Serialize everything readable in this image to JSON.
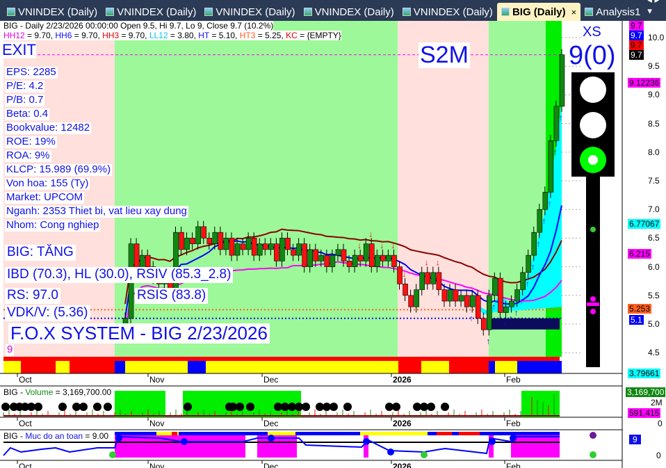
{
  "tabs": [
    {
      "label": "VNINDEX (Daily)"
    },
    {
      "label": "VNINDEX (Daily)"
    },
    {
      "label": "VNINDEX (Daily)"
    },
    {
      "label": "VNINDEX (Daily)"
    },
    {
      "label": "VNINDEX (Daily)"
    },
    {
      "label": "BIG (Daily)",
      "active": true,
      "close": "×"
    },
    {
      "label": "Analysis1"
    }
  ],
  "tab_nav": "◂ ▸ ▾",
  "header": {
    "line1": "BIG - Daily 2/23/2026 00:00:00 Open 9.5, Hi 9.7, Lo 9, Close 9.7 (10.2%)",
    "line2": [
      {
        "k": "HH12",
        "v": " = 9.70, ",
        "c": "#e000e0"
      },
      {
        "k": "HH6",
        "v": " = 9.70, ",
        "c": "#1010e8"
      },
      {
        "k": "HH3",
        "v": " = 9.70, ",
        "c": "#e00000"
      },
      {
        "k": "LL12",
        "v": " = 3.80, ",
        "c": "#00c8e8"
      },
      {
        "k": "HT",
        "v": "  = 5.10, ",
        "c": "#1010e8"
      },
      {
        "k": "HT3",
        "v": "  = 5.25, ",
        "c": "#ff6020"
      },
      {
        "k": "KC",
        "v": " = {EMPTY}",
        "c": "#e00000"
      }
    ]
  },
  "signals": {
    "exit": "EXIT",
    "s2m": "S2M",
    "xs": "XS",
    "xs_value": "9(0)"
  },
  "fundamentals": [
    "EPS: 2285",
    "P/E: 4.2",
    "P/B: 0.7",
    "Beta: 0.4",
    "Bookvalue: 12482",
    "ROE: 19%",
    "ROA: 9%",
    "KLCP: 15.989 (69.9%)",
    "Von hoa: 155 (Ty)",
    "Market: UPCOM",
    "Nganh: 2353 Thiet bi, vat lieu xay dung",
    "Nhom: Cong nghiep"
  ],
  "status": {
    "trend": "BIG: TĂNG",
    "ibd": "IBD (70.3), HL (30.0), RSIV (85.3_2.8)",
    "rsis": "RSIS (83.8)",
    "rs": "RS: 97.0",
    "vdk": "VDK/V:  (5.36)",
    "title": "F.O.X SYSTEM - BIG 2/23/2026",
    "nine": "9"
  },
  "price_axis": {
    "ticks": [
      "10.0",
      "9.5",
      "9.0",
      "8.5",
      "8.0",
      "7.5",
      "7.0",
      "6.5",
      "6.0",
      "5.5",
      "5.0",
      "4.5"
    ],
    "markers": [
      {
        "v": "9.7",
        "bg": "#ff00ff",
        "fg": "#000"
      },
      {
        "v": "9.7",
        "bg": "#0000ff",
        "fg": "#fff"
      },
      {
        "v": "9.7",
        "bg": "#ff0000",
        "fg": "#000"
      },
      {
        "v": "9.7",
        "bg": "#000",
        "fg": "#fff"
      },
      {
        "v": "9.12236",
        "bg": "#ff00ff",
        "fg": "#000"
      },
      {
        "v": "6.77067",
        "bg": "#00ffff",
        "fg": "#000"
      },
      {
        "v": "6.215",
        "bg": "#ff00ff",
        "fg": "#000"
      },
      {
        "v": "5.253",
        "bg": "#ff6020",
        "fg": "#000"
      },
      {
        "v": "5.1",
        "bg": "#0000ff",
        "fg": "#fff"
      },
      {
        "v": "3.79661",
        "bg": "#00ffff",
        "fg": "#000"
      }
    ]
  },
  "months": [
    "Oct",
    "Nov",
    "Dec",
    "2026",
    "Feb"
  ],
  "volume": {
    "title_sym": "BIG - ",
    "title_name": "Volume",
    "title_val": " = 3,169,700.00",
    "axis": [
      "2M",
      "0"
    ],
    "markers": [
      {
        "v": "3,169,700",
        "bg": "#118811",
        "fg": "#fff"
      },
      {
        "v": "591,415",
        "bg": "#ff00ff",
        "fg": "#000"
      }
    ]
  },
  "safety": {
    "title_sym": "BIG - ",
    "title_name": "Muc do an toan",
    "title_val": " = 9.00",
    "axis": [
      "0"
    ],
    "marker": "9"
  },
  "colors": {
    "bull": "#118811",
    "bear": "#ff1010",
    "pink_zone": "#ffe0dc",
    "green_zone": "#9cf898",
    "bright_green": "#00ee00"
  },
  "chart_data": {
    "type": "candlestick",
    "symbol": "BIG",
    "ylim": [
      4.3,
      10.3
    ],
    "closes": [
      5.1,
      6.4,
      5.9,
      6.2,
      6.0,
      5.8,
      5.7,
      5.9,
      5.6,
      6.6,
      6.3,
      6.5,
      6.4,
      6.7,
      6.5,
      6.4,
      6.6,
      6.3,
      6.5,
      6.2,
      6.4,
      6.3,
      6.5,
      6.2,
      6.4,
      6.3,
      6.4,
      6.1,
      6.5,
      6.3,
      6.2,
      6.4,
      6.0,
      6.3,
      6.1,
      6.2,
      6.0,
      6.2,
      6.3,
      6.1,
      6.0,
      6.2,
      6.1,
      6.4,
      6.0,
      6.2,
      6.1,
      6.2,
      6.0,
      5.7,
      5.5,
      5.3,
      5.6,
      5.9,
      5.7,
      5.9,
      5.6,
      5.4,
      5.6,
      5.4,
      5.5,
      5.3,
      5.5,
      5.1,
      4.9,
      5.5,
      5.8,
      5.2,
      5.3,
      5.4,
      5.6,
      5.9,
      6.2,
      6.6,
      7.0,
      7.3,
      8.2,
      8.8,
      9.7
    ],
    "last": {
      "open": 9.5,
      "high": 9.7,
      "low": 9,
      "close": 9.7
    },
    "levels": {
      "HT": 5.1,
      "HT3": 5.25,
      "HH": 9.7
    }
  }
}
